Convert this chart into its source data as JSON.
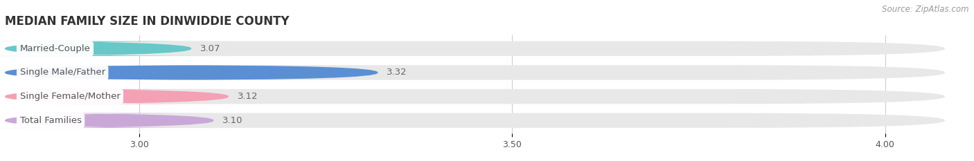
{
  "title": "MEDIAN FAMILY SIZE IN DINWIDDIE COUNTY",
  "source": "Source: ZipAtlas.com",
  "categories": [
    "Married-Couple",
    "Single Male/Father",
    "Single Female/Mother",
    "Total Families"
  ],
  "values": [
    3.07,
    3.32,
    3.12,
    3.1
  ],
  "bar_colors": [
    "#68c8c8",
    "#5b8fd4",
    "#f4a0b5",
    "#c9a8d8"
  ],
  "bar_bg_color": "#e8e8e8",
  "xmin": 2.82,
  "xmax": 4.08,
  "xticks": [
    3.0,
    3.5,
    4.0
  ],
  "xtick_labels": [
    "3.00",
    "3.50",
    "4.00"
  ],
  "label_color": "#555555",
  "value_color": "#666666",
  "title_color": "#333333",
  "title_fontsize": 12,
  "label_fontsize": 9.5,
  "value_fontsize": 9.5,
  "tick_fontsize": 9,
  "source_fontsize": 8.5,
  "bar_height": 0.62,
  "bar_gap": 0.15,
  "figure_bg": "#ffffff",
  "grid_color": "#cccccc",
  "rounding": 0.3
}
